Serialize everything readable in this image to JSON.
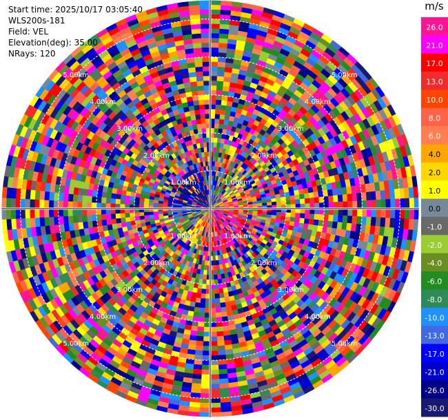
{
  "info": {
    "start_time": "Start time: 2025/10/17 03:05:40",
    "station": "WLS200s-181",
    "field": "Field: VEL",
    "elevation": "Elevation(deg): 35.00",
    "nrays": "NRays: 120"
  },
  "chart_data": {
    "type": "heatmap",
    "projection": "polar-ppi",
    "field": "VEL",
    "nrays": 120,
    "max_range_km": 5.5,
    "range_rings_km": [
      1,
      2,
      3,
      4,
      5
    ],
    "range_labels": [
      "1.00km",
      "2.00km",
      "3.00km",
      "4.00km",
      "5.00km"
    ],
    "colorbar": {
      "unit": "m/s",
      "ticks": [
        "26.0",
        "21.0",
        "17.0",
        "13.0",
        "10.0",
        "8.0",
        "6.0",
        "4.0",
        "2.0",
        "1.0",
        "0.0",
        "-1.0",
        "-2.0",
        "-4.0",
        "-6.0",
        "-8.0",
        "-10.0",
        "-13.0",
        "-17.0",
        "-21.0",
        "-26.0",
        "-30.0"
      ],
      "colors": [
        "#ff1493",
        "#ff00ff",
        "#ff0000",
        "#ee2c2c",
        "#ff4500",
        "#ff6347",
        "#ff7f50",
        "#ffa500",
        "#ffd700",
        "#ffff00",
        "#778899",
        "#696969",
        "#9acd32",
        "#6b8e23",
        "#228b22",
        "#2e8b57",
        "#1e90ff",
        "#4169e1",
        "#0000ff",
        "#0000cd",
        "#00008b",
        "#191970"
      ]
    }
  }
}
